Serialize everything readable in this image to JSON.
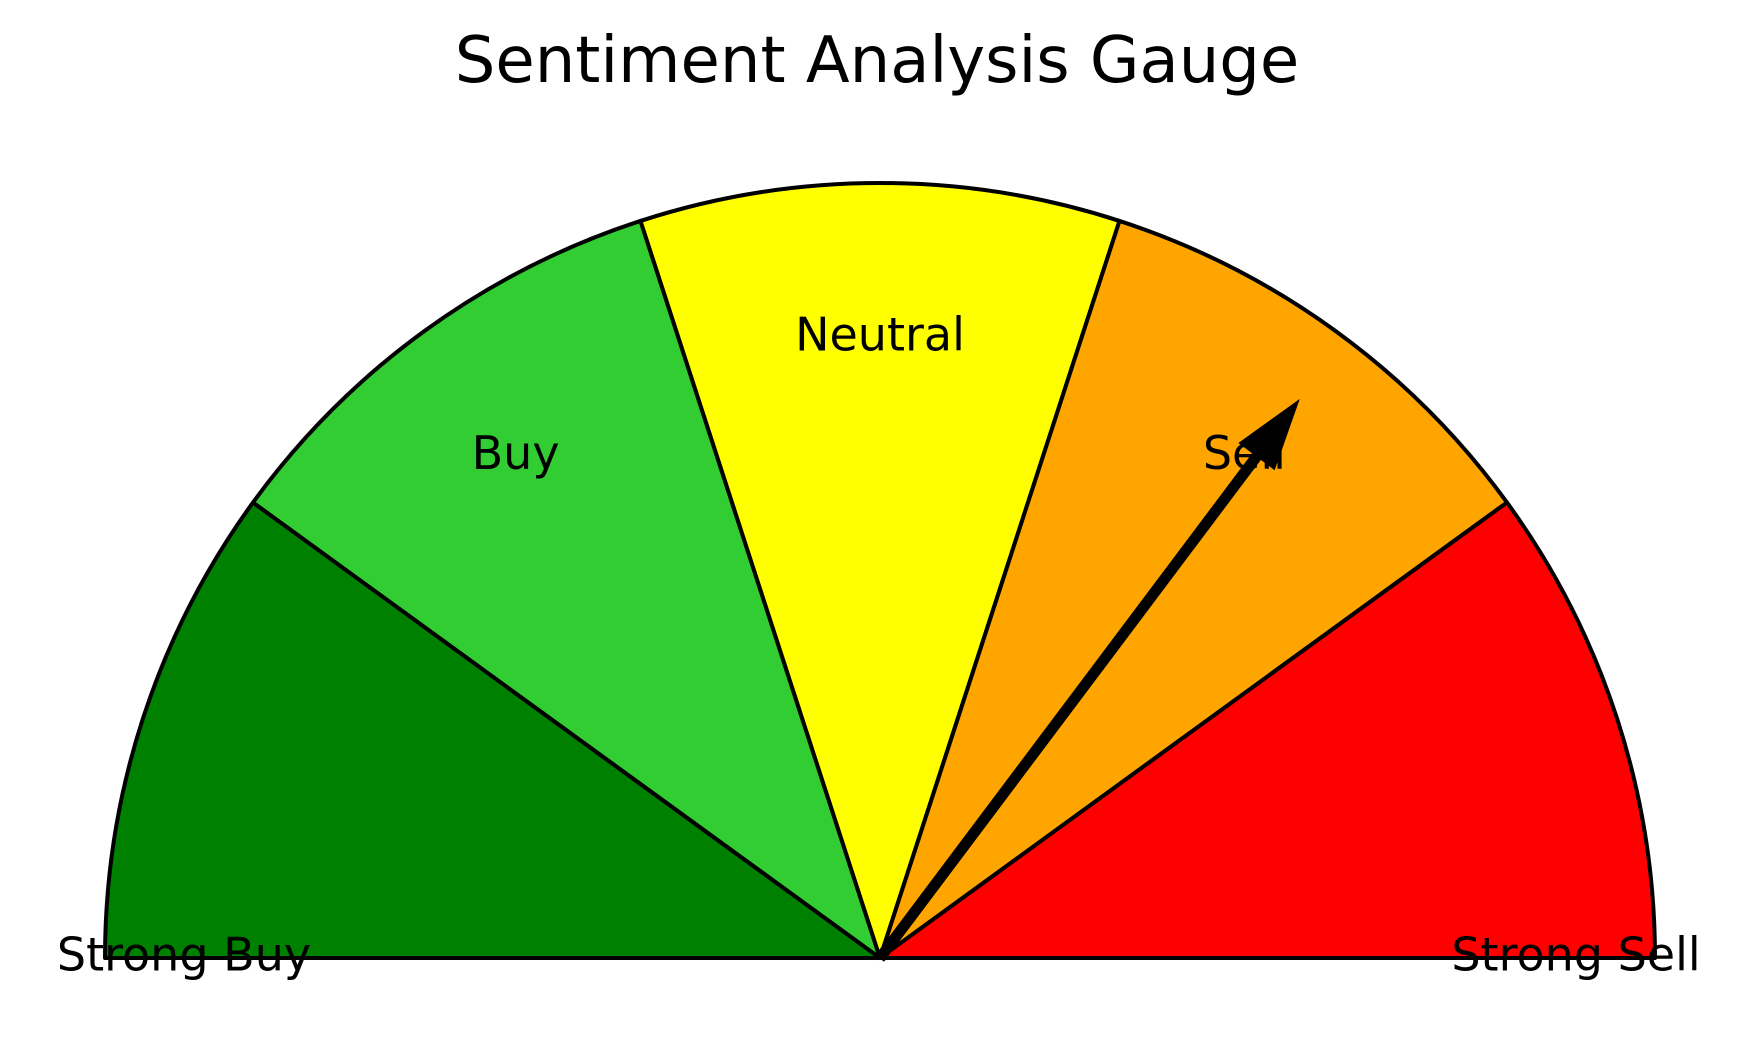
{
  "chart_data": {
    "type": "gauge",
    "title": "Sentiment Analysis Gauge",
    "range": [
      0,
      100
    ],
    "segments": [
      {
        "label": "Strong Buy",
        "from": 0,
        "to": 20,
        "color": "#008000"
      },
      {
        "label": "Buy",
        "from": 20,
        "to": 40,
        "color": "#32CD32"
      },
      {
        "label": "Neutral",
        "from": 40,
        "to": 60,
        "color": "#FFFF00"
      },
      {
        "label": "Sell",
        "from": 60,
        "to": 80,
        "color": "#FFA500"
      },
      {
        "label": "Strong Sell",
        "from": 80,
        "to": 100,
        "color": "#FF0000"
      }
    ],
    "needle_value": 70.5,
    "needle_color": "#000000",
    "outline_color": "#000000"
  }
}
